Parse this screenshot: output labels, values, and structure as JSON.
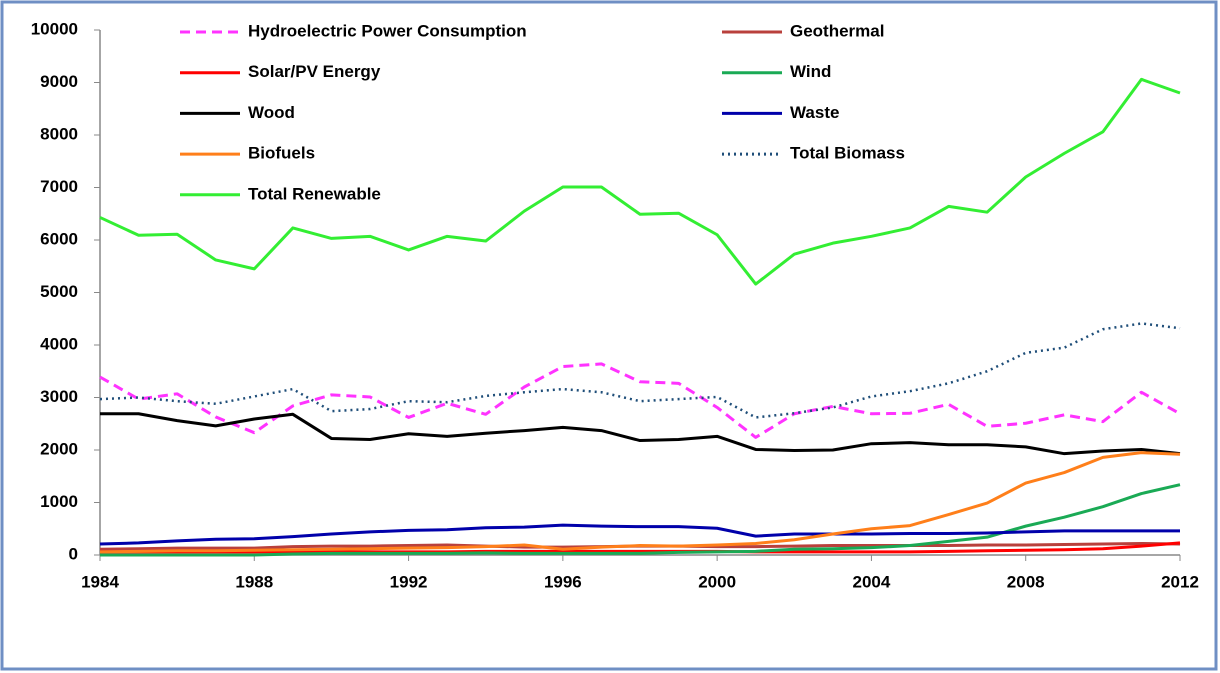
{
  "chart_data": {
    "type": "line",
    "x": [
      1984,
      1985,
      1986,
      1987,
      1988,
      1989,
      1990,
      1991,
      1992,
      1993,
      1994,
      1995,
      1996,
      1997,
      1998,
      1999,
      2000,
      2001,
      2002,
      2003,
      2004,
      2005,
      2006,
      2007,
      2008,
      2009,
      2010,
      2011,
      2012
    ],
    "xlim": [
      1984,
      2012
    ],
    "xticks": [
      1984,
      1988,
      1992,
      1996,
      2000,
      2004,
      2008,
      2012
    ],
    "ylim": [
      0,
      10000
    ],
    "yticks": [
      0,
      1000,
      2000,
      3000,
      4000,
      5000,
      6000,
      7000,
      8000,
      9000,
      10000
    ],
    "grid": false,
    "series": [
      {
        "name": "Hydroelectric Power Consumption",
        "color": "#ff33ff",
        "dash": "dashed",
        "values": [
          3390,
          2970,
          3070,
          2630,
          2330,
          2840,
          3050,
          3010,
          2620,
          2890,
          2680,
          3200,
          3590,
          3640,
          3300,
          3270,
          2810,
          2240,
          2690,
          2830,
          2690,
          2700,
          2870,
          2450,
          2510,
          2670,
          2540,
          3100,
          2690
        ]
      },
      {
        "name": "Geothermal",
        "color": "#b9403c",
        "dash": "solid",
        "values": [
          110,
          120,
          130,
          130,
          130,
          160,
          170,
          170,
          180,
          190,
          170,
          150,
          150,
          160,
          170,
          170,
          160,
          160,
          170,
          180,
          180,
          180,
          180,
          190,
          190,
          200,
          210,
          220,
          210
        ]
      },
      {
        "name": "Solar/PV Energy",
        "color": "#ff0000",
        "dash": "solid",
        "values": [
          60,
          60,
          60,
          60,
          60,
          60,
          60,
          60,
          60,
          60,
          70,
          70,
          70,
          70,
          70,
          70,
          70,
          60,
          60,
          60,
          60,
          60,
          70,
          80,
          90,
          100,
          120,
          170,
          230
        ]
      },
      {
        "name": "Wind",
        "color": "#1aaa55",
        "dash": "solid",
        "values": [
          0,
          0,
          0,
          0,
          0,
          20,
          30,
          30,
          30,
          30,
          40,
          30,
          30,
          30,
          30,
          50,
          60,
          70,
          110,
          120,
          140,
          180,
          260,
          340,
          550,
          720,
          920,
          1170,
          1340
        ]
      },
      {
        "name": "Wood",
        "color": "#000000",
        "dash": "solid",
        "values": [
          2690,
          2690,
          2560,
          2460,
          2590,
          2680,
          2220,
          2200,
          2310,
          2260,
          2320,
          2370,
          2430,
          2370,
          2180,
          2200,
          2260,
          2010,
          1990,
          2000,
          2120,
          2140,
          2100,
          2100,
          2060,
          1930,
          1980,
          2010,
          1930
        ]
      },
      {
        "name": "Waste",
        "color": "#0000aa",
        "dash": "solid",
        "values": [
          210,
          230,
          270,
          300,
          310,
          350,
          400,
          440,
          470,
          480,
          520,
          530,
          570,
          550,
          540,
          540,
          510,
          360,
          400,
          400,
          400,
          410,
          410,
          420,
          440,
          460,
          460,
          460,
          460
        ]
      },
      {
        "name": "Biofuels",
        "color": "#ff7f1a",
        "dash": "solid",
        "values": [
          60,
          70,
          80,
          80,
          90,
          100,
          110,
          120,
          130,
          140,
          160,
          190,
          110,
          150,
          180,
          170,
          190,
          220,
          290,
          400,
          500,
          560,
          770,
          990,
          1370,
          1570,
          1860,
          1950,
          1920
        ]
      },
      {
        "name": "Total Biomass",
        "color": "#1f4e79",
        "dash": "dotted",
        "values": [
          2970,
          3000,
          2930,
          2880,
          3020,
          3160,
          2740,
          2780,
          2930,
          2910,
          3030,
          3100,
          3160,
          3100,
          2930,
          2970,
          3010,
          2620,
          2700,
          2810,
          3020,
          3120,
          3270,
          3500,
          3850,
          3950,
          4300,
          4410,
          4320
        ]
      },
      {
        "name": "Total Renewable",
        "color": "#33ee33",
        "dash": "solid",
        "values": [
          6430,
          6090,
          6110,
          5620,
          5450,
          6230,
          6030,
          6070,
          5810,
          6070,
          5980,
          6550,
          7010,
          7010,
          6490,
          6510,
          6100,
          5160,
          5730,
          5940,
          6070,
          6230,
          6640,
          6530,
          7200,
          7650,
          8060,
          9060,
          8800
        ]
      }
    ]
  }
}
